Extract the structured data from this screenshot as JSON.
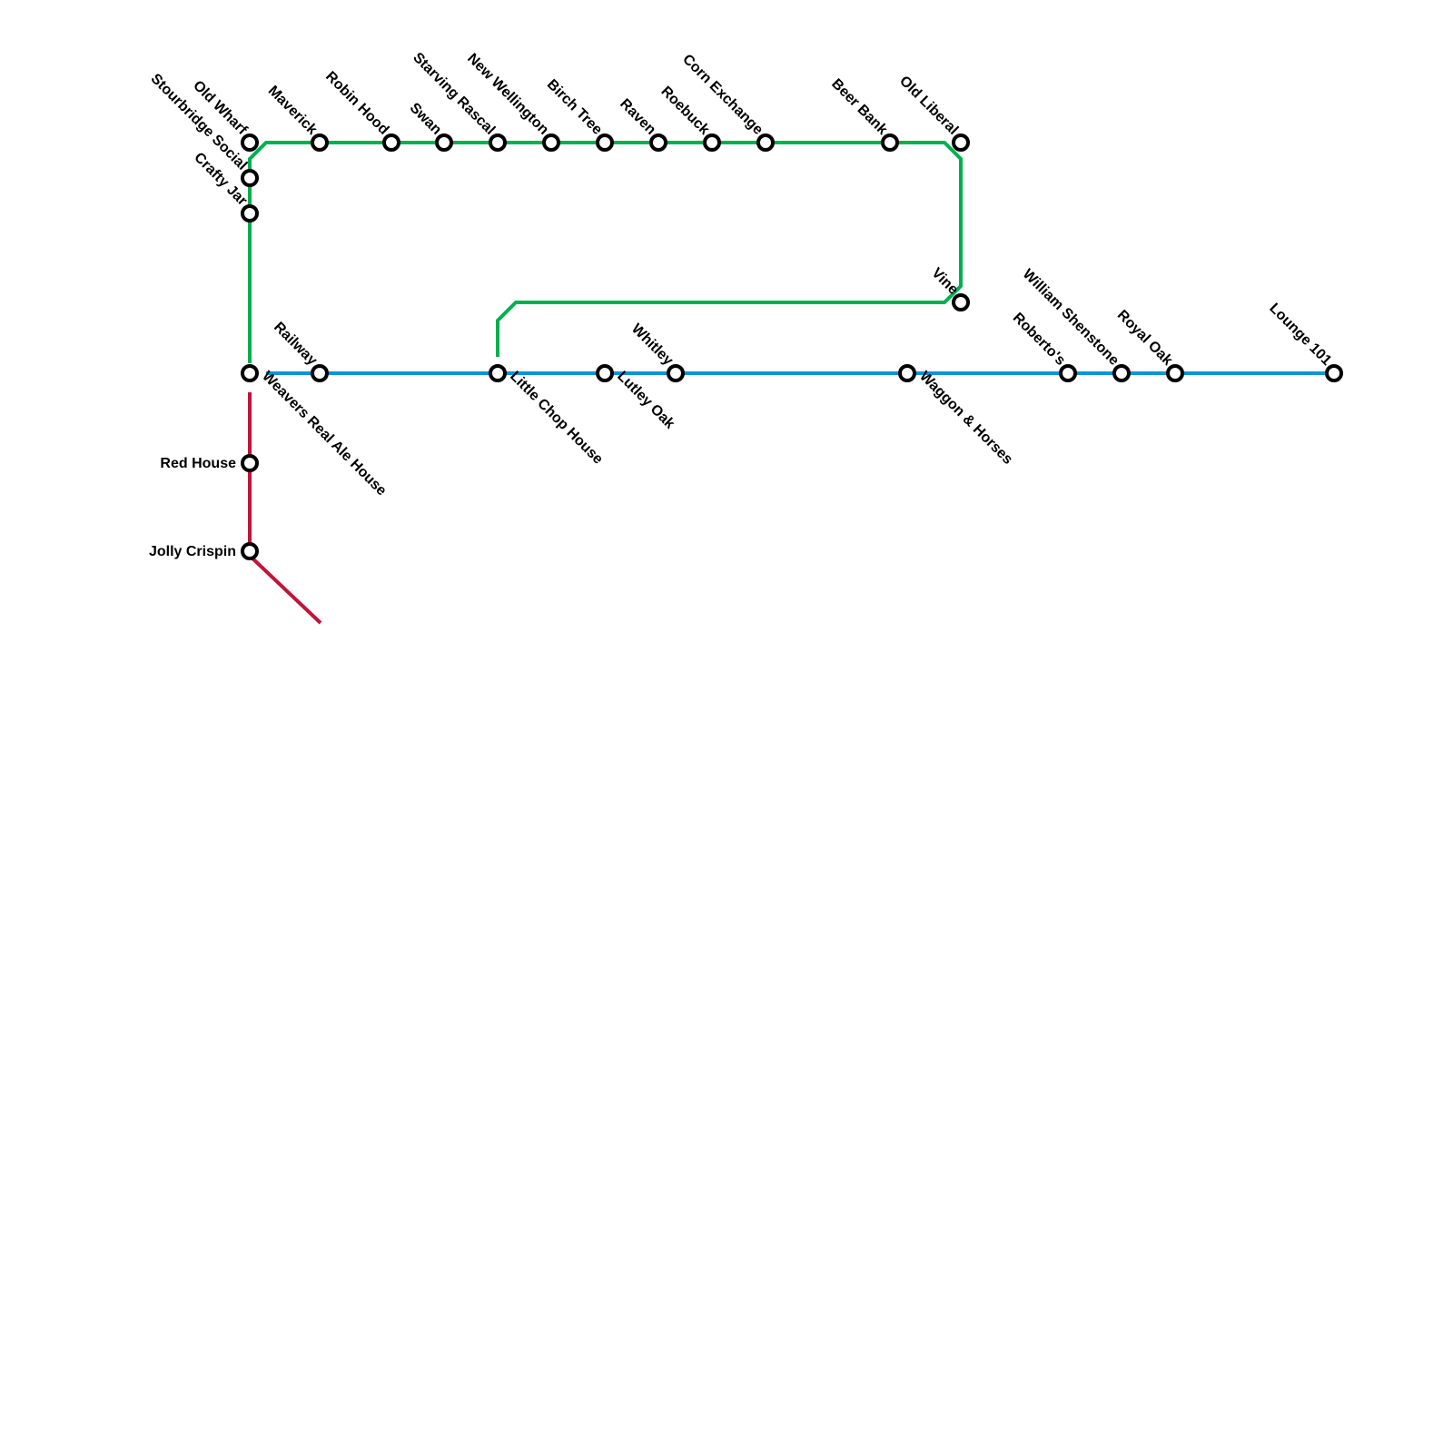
{
  "lines": [
    {
      "name": "green-line",
      "color": "#00b050"
    },
    {
      "name": "blue-line",
      "color": "#0096db"
    },
    {
      "name": "red-line",
      "color": "#c0143c"
    }
  ],
  "stations": [
    "Old Wharf",
    "Stourbridge Social",
    "Crafty Jar",
    "Maverick",
    "Robin Hood",
    "Swan",
    "Starving Rascal",
    "New Wellington",
    "Birch Tree",
    "Raven",
    "Roebuck",
    "Corn Exchange",
    "Beer Bank",
    "Old Liberal",
    "Vine",
    "Weavers Real Ale House",
    "Railway",
    "Little Chop House",
    "Lutley Oak",
    "Whitley",
    "Waggon & Horses",
    "Roberto's",
    "William Shenstone",
    "Royal Oak",
    "Lounge 101",
    "Red House",
    "Jolly Crispin"
  ]
}
